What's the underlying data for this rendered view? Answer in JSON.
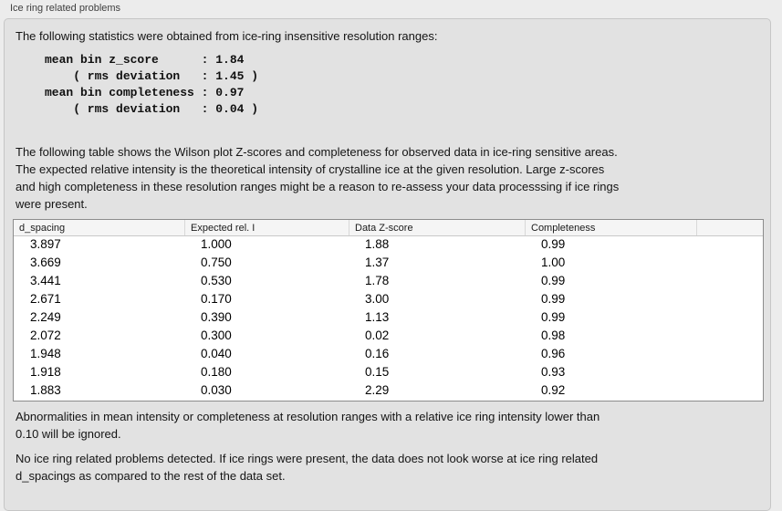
{
  "panel": {
    "title": "Ice ring related problems"
  },
  "stats": {
    "intro": "The following statistics were obtained from ice-ring insensitive resolution ranges:",
    "mono_lines": [
      "mean bin z_score      : 1.84",
      "    ( rms deviation   : 1.45 )",
      "mean bin completeness : 0.97",
      "    ( rms deviation   : 0.04 )"
    ]
  },
  "description": {
    "lines": [
      "The following table shows the Wilson plot Z-scores and completeness for observed data in ice-ring sensitive areas.",
      "The expected relative intensity is the theoretical intensity of crystalline ice at the given resolution. Large z-scores",
      "and high completeness in these resolution ranges might be a reason to re-assess your data processsing if ice rings",
      "were present."
    ]
  },
  "table": {
    "columns": [
      "d_spacing",
      "Expected rel. I",
      "Data Z-score",
      "Completeness",
      ""
    ],
    "rows": [
      [
        "3.897",
        "1.000",
        "1.88",
        "0.99"
      ],
      [
        "3.669",
        "0.750",
        "1.37",
        "1.00"
      ],
      [
        "3.441",
        "0.530",
        "1.78",
        "0.99"
      ],
      [
        "2.671",
        "0.170",
        "3.00",
        "0.99"
      ],
      [
        "2.249",
        "0.390",
        "1.13",
        "0.99"
      ],
      [
        "2.072",
        "0.300",
        "0.02",
        "0.98"
      ],
      [
        "1.948",
        "0.040",
        "0.16",
        "0.96"
      ],
      [
        "1.918",
        "0.180",
        "0.15",
        "0.93"
      ],
      [
        "1.883",
        "0.030",
        "2.29",
        "0.92"
      ]
    ]
  },
  "notes": {
    "ignore_lines": [
      "Abnormalities in mean intensity or completeness at resolution ranges with a relative ice ring intensity lower than",
      "0.10 will be ignored."
    ],
    "conclusion_lines": [
      "No ice ring related problems detected. If ice rings were present, the data does not look worse at ice ring related",
      "d_spacings as compared to the rest of the data set."
    ]
  }
}
